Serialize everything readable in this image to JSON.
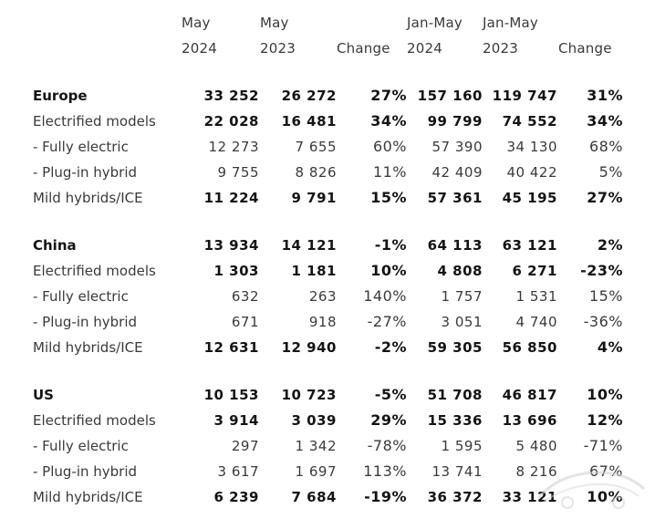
{
  "headers": {
    "col1": [
      "May",
      "2024"
    ],
    "col2": [
      "May",
      "2023"
    ],
    "col3": "Change",
    "col4": [
      "Jan-May",
      "2024"
    ],
    "col5": [
      "Jan-May",
      "2023"
    ],
    "col6": "Change"
  },
  "sections": [
    {
      "rows": [
        {
          "label": "Europe",
          "type": "region",
          "values": [
            "33 252",
            "26 272",
            "27%",
            "157 160",
            "119 747",
            "31%"
          ]
        },
        {
          "label": "Electrified models",
          "type": "bold",
          "values": [
            "22 028",
            "16 481",
            "34%",
            "99 799",
            "74 552",
            "34%"
          ]
        },
        {
          "label": " - Fully electric",
          "type": "plain",
          "values": [
            "12 273",
            "7 655",
            "60%",
            "57 390",
            "34 130",
            "68%"
          ]
        },
        {
          "label": " - Plug-in hybrid",
          "type": "plain",
          "values": [
            "9 755",
            "8 826",
            "11%",
            "42 409",
            "40 422",
            "5%"
          ]
        },
        {
          "label": "Mild hybrids/ICE",
          "type": "bold",
          "values": [
            "11 224",
            "9 791",
            "15%",
            "57 361",
            "45 195",
            "27%"
          ]
        }
      ]
    },
    {
      "rows": [
        {
          "label": "China",
          "type": "region",
          "values": [
            "13 934",
            "14 121",
            "-1%",
            "64 113",
            "63 121",
            "2%"
          ]
        },
        {
          "label": "Electrified models",
          "type": "bold",
          "values": [
            "1 303",
            "1 181",
            "10%",
            "4 808",
            "6 271",
            "-23%"
          ]
        },
        {
          "label": " - Fully electric",
          "type": "plain",
          "values": [
            "632",
            "263",
            "140%",
            "1 757",
            "1 531",
            "15%"
          ]
        },
        {
          "label": " - Plug-in hybrid",
          "type": "plain",
          "values": [
            "671",
            "918",
            "-27%",
            "3 051",
            "4 740",
            "-36%"
          ]
        },
        {
          "label": "Mild hybrids/ICE",
          "type": "bold",
          "values": [
            "12 631",
            "12 940",
            "-2%",
            "59 305",
            "56 850",
            "4%"
          ]
        }
      ]
    },
    {
      "rows": [
        {
          "label": "US",
          "type": "region",
          "values": [
            "10 153",
            "10 723",
            "-5%",
            "51 708",
            "46 817",
            "10%"
          ]
        },
        {
          "label": "Electrified models",
          "type": "bold",
          "values": [
            "3 914",
            "3 039",
            "29%",
            "15 336",
            "13 696",
            "12%"
          ]
        },
        {
          "label": " - Fully electric",
          "type": "plain",
          "values": [
            "297",
            "1 342",
            "-78%",
            "1 595",
            "5 480",
            "-71%"
          ]
        },
        {
          "label": " - Plug-in hybrid",
          "type": "plain",
          "values": [
            "3 617",
            "1 697",
            "113%",
            "13 741",
            "8 216",
            "67%"
          ]
        },
        {
          "label": "Mild hybrids/ICE",
          "type": "bold",
          "values": [
            "6 239",
            "7 684",
            "-19%",
            "36 372",
            "33 121",
            "10%"
          ]
        }
      ]
    }
  ]
}
